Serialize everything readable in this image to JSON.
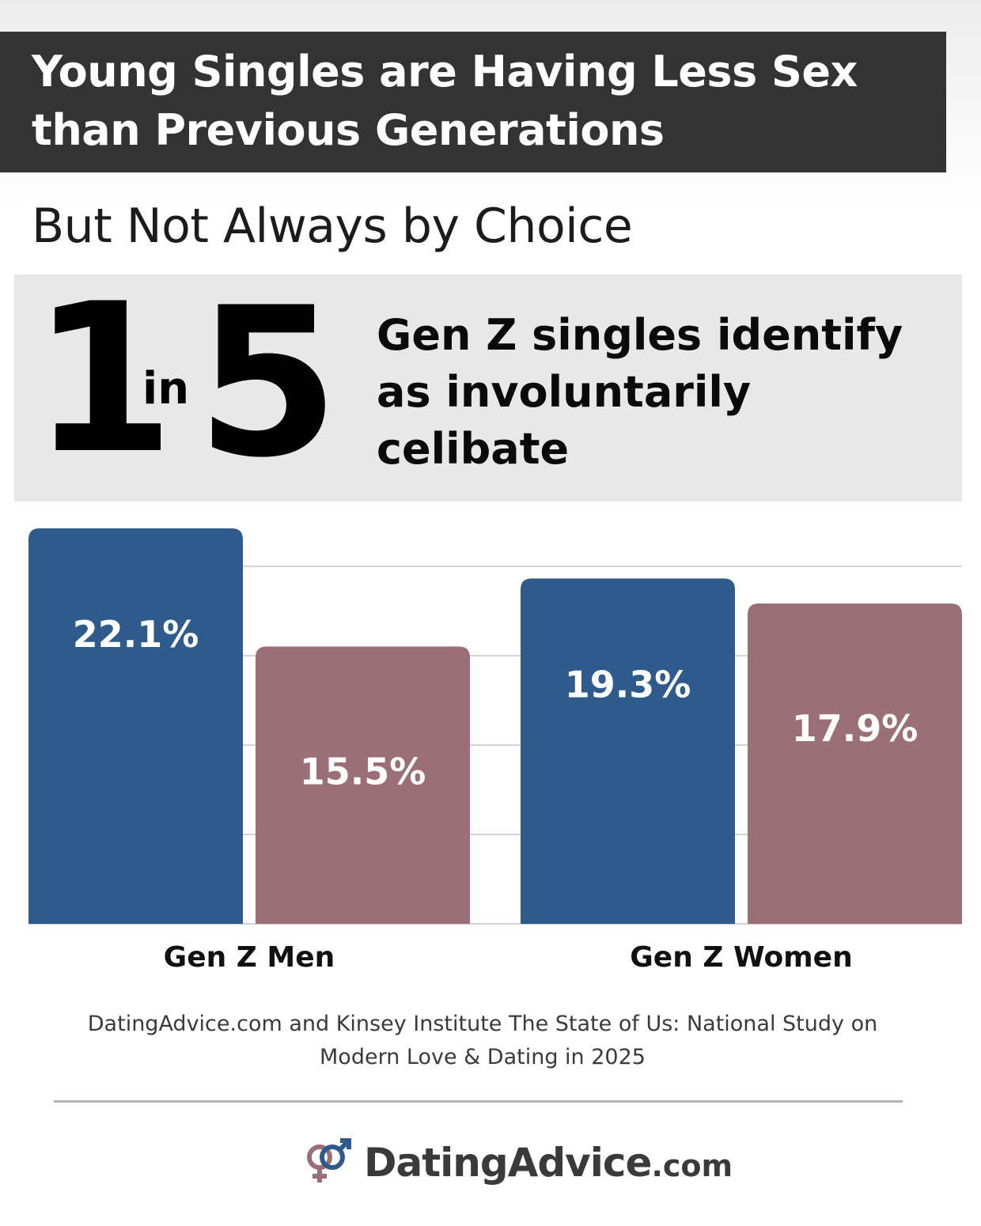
{
  "header": {
    "title_line1": "Young Singles are Having Less Sex",
    "title_line2": "than Previous Generations",
    "subtitle": "But Not Always by Choice"
  },
  "stat": {
    "big_number_1": "1",
    "connector": "in",
    "big_number_2": "5",
    "line1": "Gen Z singles identify",
    "line2": "as involuntarily",
    "line3": "celibate"
  },
  "chart_data": {
    "type": "bar",
    "title": "",
    "xlabel": "",
    "ylabel": "",
    "ylim": [
      0,
      22.1
    ],
    "grid": true,
    "legend": "none",
    "categories": [
      "Gen Z Men",
      "Gen Z Women"
    ],
    "series": [
      {
        "values": [
          22.1,
          19.3
        ],
        "color": "#2f5a8c"
      },
      {
        "values": [
          15.5,
          17.9
        ],
        "color": "#9a6f77"
      }
    ],
    "value_labels": [
      [
        "22.1%",
        "19.3%"
      ],
      [
        "15.5%",
        "17.9%"
      ]
    ]
  },
  "footer": {
    "source_line1": "DatingAdvice.com and Kinsey Institute The State of Us: National Study on",
    "source_line2": "Modern Love & Dating in 2025",
    "logo_main": "DatingAdvice",
    "logo_suffix": ".com",
    "logo_icon": "gender-symbols-icon"
  }
}
